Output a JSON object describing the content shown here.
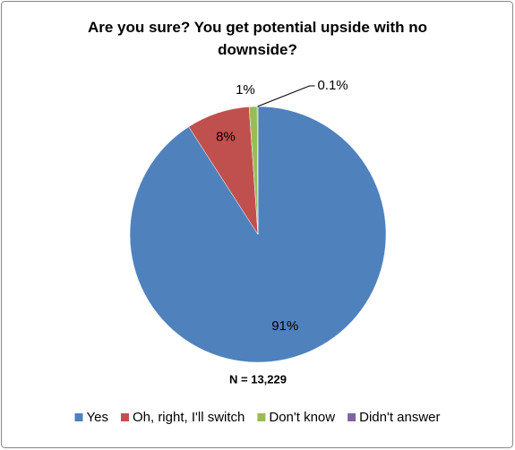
{
  "chart_data": {
    "type": "pie",
    "title": "Are you sure? You get potential upside with no downside?",
    "annotation": "N = 13,229",
    "categories": [
      "Yes",
      "Oh, right, I'll switch",
      "Don't know",
      "Didn't answer"
    ],
    "values": [
      91,
      8,
      1,
      0.1
    ],
    "value_labels": [
      "91%",
      "8%",
      "1%",
      "0.1%"
    ],
    "colors": [
      "#4f81bd",
      "#c0504d",
      "#9bbb59",
      "#8064a2"
    ],
    "legend": "bottom"
  }
}
